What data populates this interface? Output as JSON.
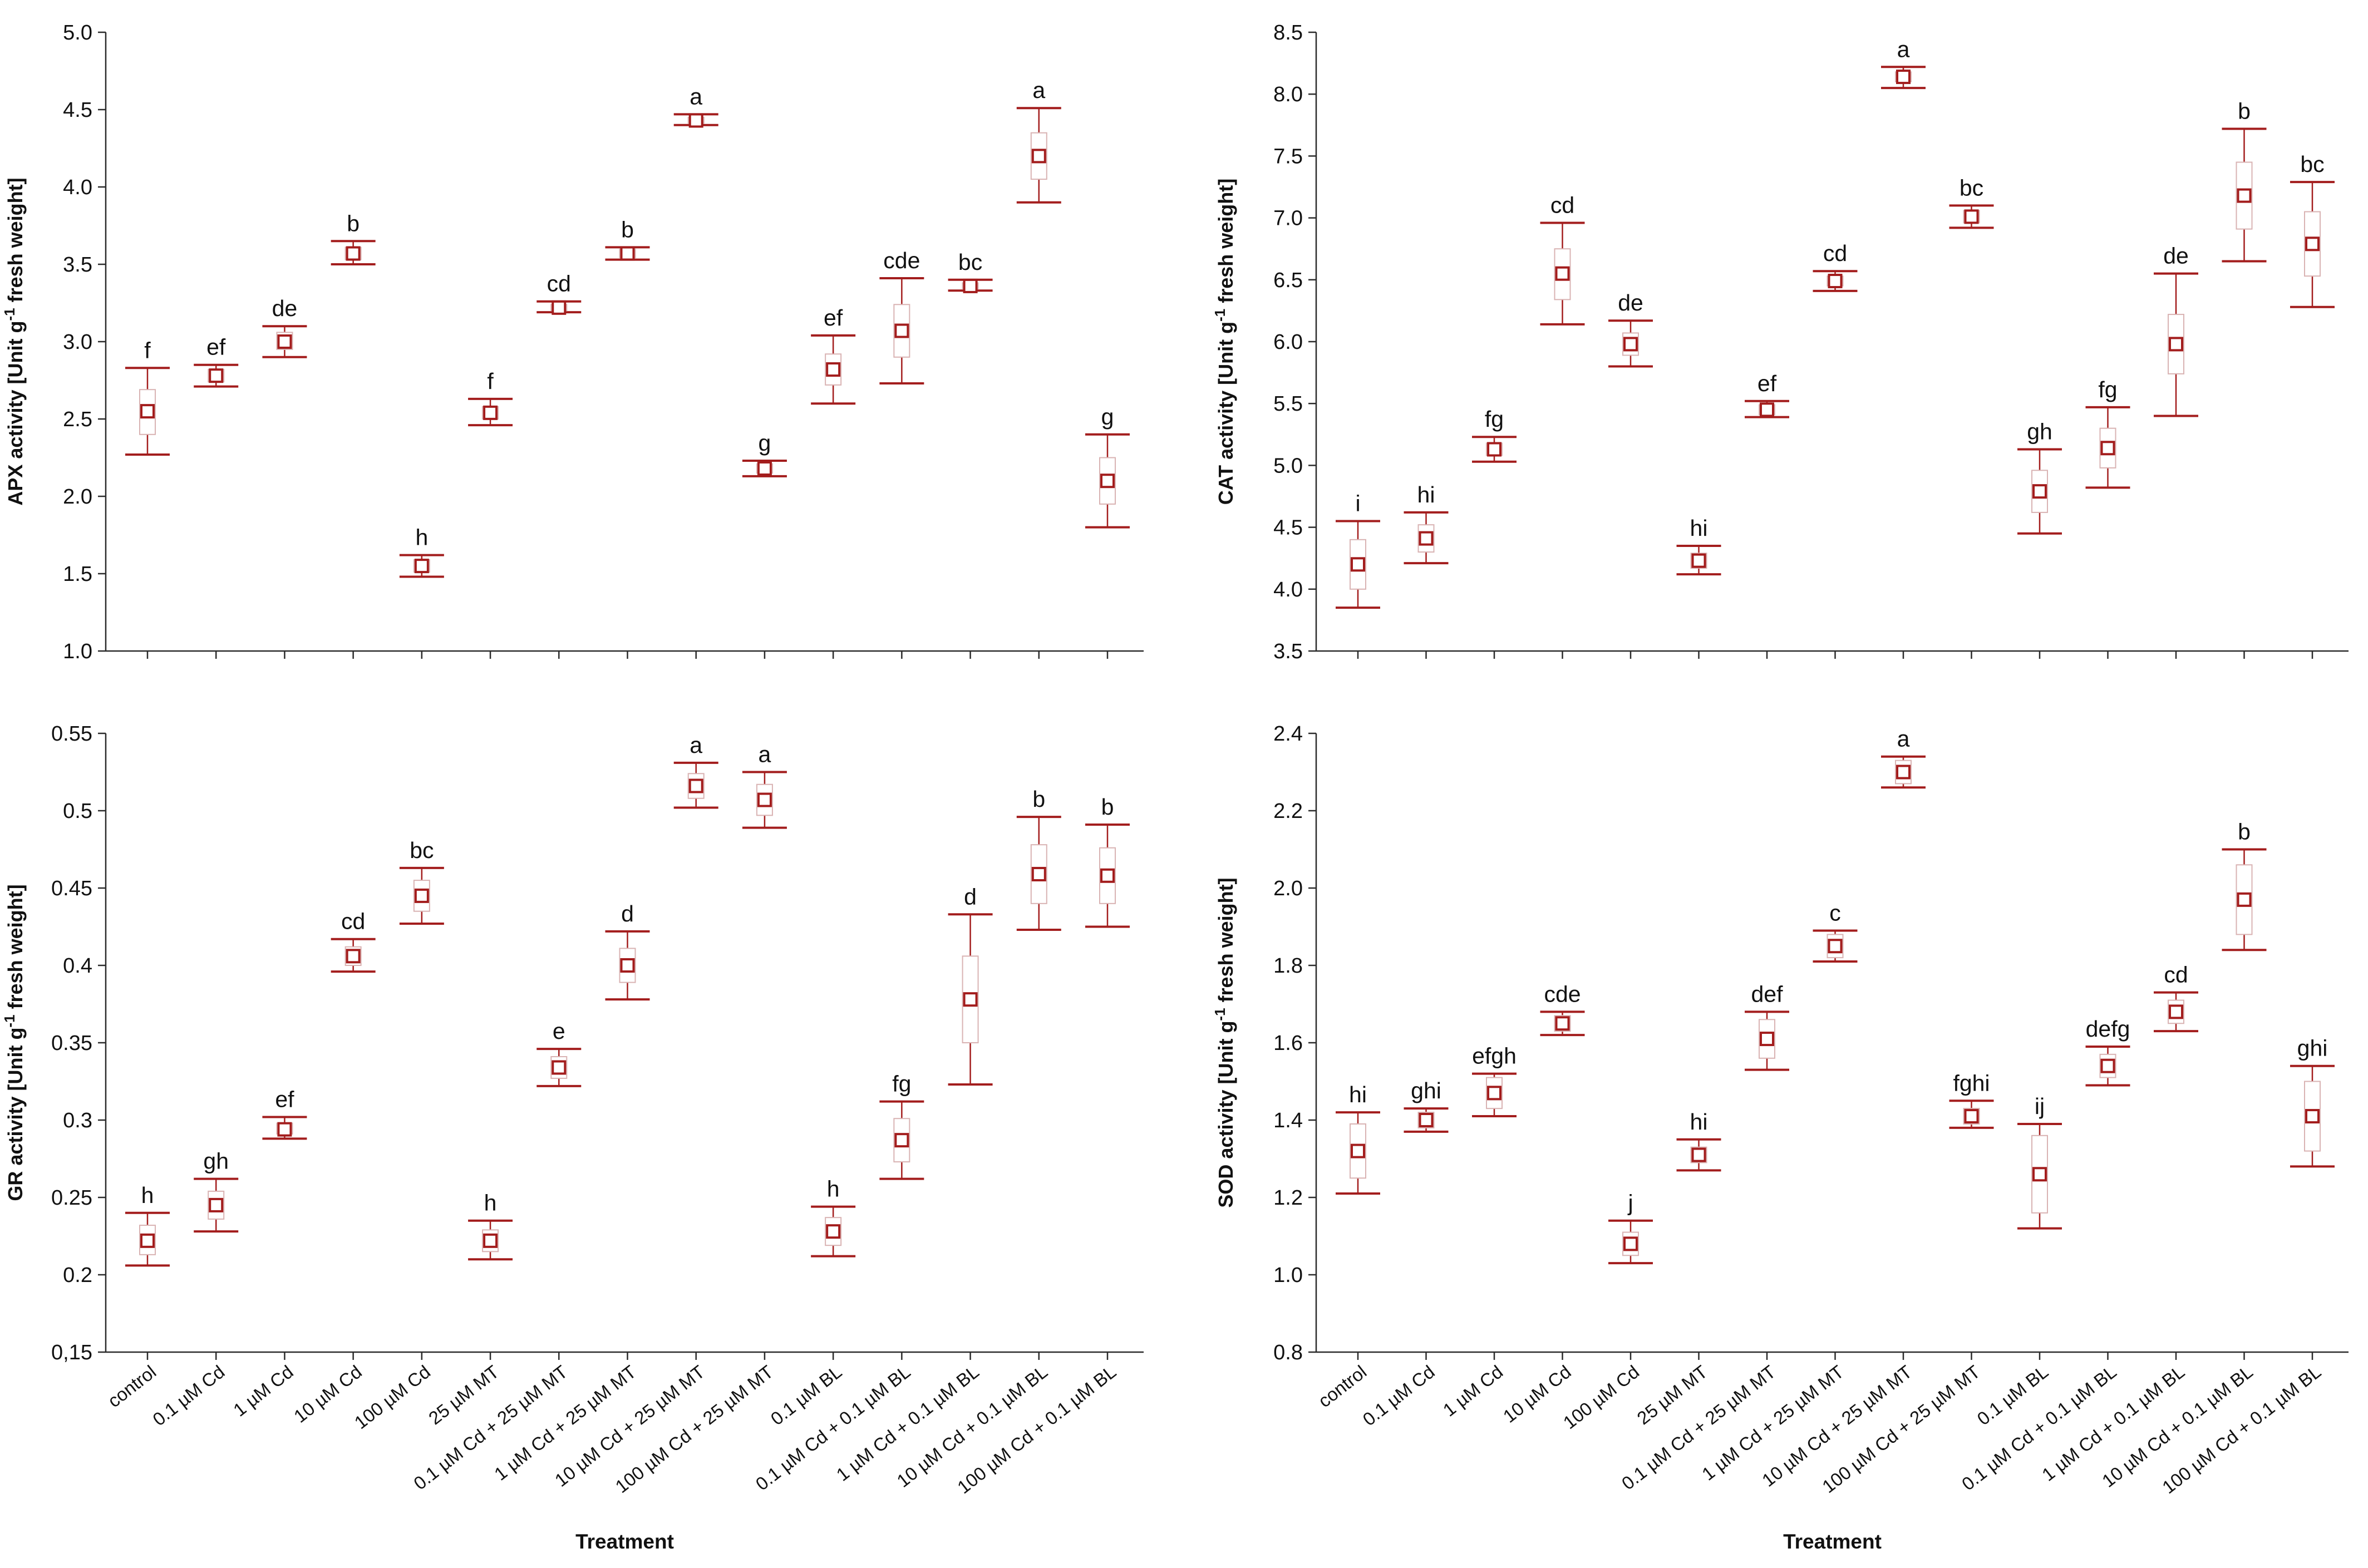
{
  "colors": {
    "mark": "#a31d1d",
    "box": "#d9b3b3",
    "axis": "#2b2b2b"
  },
  "xlabel": "Treatment",
  "categories": [
    "control",
    "0.1 µM Cd",
    "1 µM Cd",
    "10 µM Cd",
    "100 µM Cd",
    "25 µM MT",
    "0.1 µM Cd + 25 µM MT",
    "1 µM Cd + 25 µM MT",
    "10 µM Cd + 25 µM MT",
    "100 µM Cd + 25 µM MT",
    "0.1 µM BL",
    "0.1 µM Cd + 0.1 µM BL",
    "1 µM Cd + 0.1 µM BL",
    "10 µM Cd + 0.1 µM BL",
    "100 µM Cd + 0.1 µM BL"
  ],
  "chart_data": [
    {
      "type": "scatter",
      "panel": "top-left",
      "ylabel": "APX activity [Unit g-1 fresh weight]",
      "ylim": [
        1.0,
        5.0
      ],
      "yticks": [
        1.0,
        1.5,
        2.0,
        2.5,
        3.0,
        3.5,
        4.0,
        4.5,
        5.0
      ],
      "ytick_labels": [
        "1.0",
        "1.5",
        "2.0",
        "2.5",
        "3.0",
        "3.5",
        "4.0",
        "4.5",
        "5.0"
      ],
      "means": [
        2.55,
        2.78,
        3.0,
        3.57,
        1.55,
        2.54,
        3.22,
        3.57,
        4.43,
        2.18,
        2.82,
        3.07,
        3.36,
        4.2,
        2.1
      ],
      "box_low": [
        2.4,
        2.74,
        2.95,
        3.53,
        1.51,
        2.5,
        3.2,
        3.54,
        4.41,
        2.15,
        2.72,
        2.9,
        3.34,
        4.05,
        1.95
      ],
      "box_high": [
        2.69,
        2.82,
        3.06,
        3.61,
        1.59,
        2.58,
        3.24,
        3.6,
        4.45,
        2.21,
        2.92,
        3.24,
        3.38,
        4.35,
        2.25
      ],
      "err_low": [
        2.27,
        2.71,
        2.9,
        3.5,
        1.48,
        2.46,
        3.19,
        3.53,
        4.4,
        2.13,
        2.6,
        2.73,
        3.33,
        3.9,
        1.8
      ],
      "err_high": [
        2.83,
        2.85,
        3.1,
        3.65,
        1.62,
        2.63,
        3.26,
        3.61,
        4.47,
        2.23,
        3.04,
        3.41,
        3.4,
        4.51,
        2.4
      ],
      "letters": [
        "f",
        "ef",
        "de",
        "b",
        "h",
        "f",
        "cd",
        "b",
        "a",
        "g",
        "ef",
        "cde",
        "bc",
        "a",
        "g"
      ]
    },
    {
      "type": "scatter",
      "panel": "top-right",
      "ylabel": "CAT activity [Unit g-1 fresh weight]",
      "ylim": [
        3.5,
        8.5
      ],
      "yticks": [
        3.5,
        4.0,
        4.5,
        5.0,
        5.5,
        6.0,
        6.5,
        7.0,
        7.5,
        8.0,
        8.5
      ],
      "ytick_labels": [
        "3.5",
        "4.0",
        "4.5",
        "5.0",
        "5.5",
        "6.0",
        "6.5",
        "7.0",
        "7.5",
        "8.0",
        "8.5"
      ],
      "means": [
        4.2,
        4.41,
        5.13,
        6.55,
        5.98,
        4.23,
        5.45,
        6.49,
        8.14,
        7.01,
        4.79,
        5.14,
        5.98,
        7.18,
        6.79
      ],
      "box_low": [
        4.0,
        4.3,
        5.08,
        6.34,
        5.89,
        4.17,
        5.41,
        6.45,
        8.1,
        6.96,
        4.62,
        4.98,
        5.74,
        6.91,
        6.53
      ],
      "box_high": [
        4.4,
        4.52,
        5.18,
        6.75,
        6.07,
        4.29,
        5.49,
        6.53,
        8.18,
        7.06,
        4.96,
        5.3,
        6.22,
        7.45,
        7.05
      ],
      "err_low": [
        3.85,
        4.21,
        5.03,
        6.14,
        5.8,
        4.12,
        5.39,
        6.41,
        8.05,
        6.92,
        4.45,
        4.82,
        5.4,
        6.65,
        6.28
      ],
      "err_high": [
        4.55,
        4.62,
        5.23,
        6.96,
        6.17,
        4.35,
        5.52,
        6.57,
        8.22,
        7.1,
        5.13,
        5.47,
        6.55,
        7.72,
        7.29
      ],
      "letters": [
        "i",
        "hi",
        "fg",
        "cd",
        "de",
        "hi",
        "ef",
        "cd",
        "a",
        "bc",
        "gh",
        "fg",
        "de",
        "b",
        "bc"
      ]
    },
    {
      "type": "scatter",
      "panel": "bottom-left",
      "ylabel": "GR activity [Unit g-1 fresh weight]",
      "ylim": [
        0.15,
        0.55
      ],
      "yticks": [
        0.15,
        0.2,
        0.25,
        0.3,
        0.35,
        0.4,
        0.45,
        0.5,
        0.55
      ],
      "ytick_labels": [
        "0,15",
        "0.2",
        "0.25",
        "0.3",
        "0.35",
        "0.4",
        "0.45",
        "0.5",
        "0.55"
      ],
      "means": [
        0.222,
        0.245,
        0.294,
        0.406,
        0.445,
        0.222,
        0.334,
        0.4,
        0.516,
        0.507,
        0.228,
        0.287,
        0.378,
        0.459,
        0.458
      ],
      "box_low": [
        0.213,
        0.236,
        0.291,
        0.4,
        0.435,
        0.215,
        0.327,
        0.389,
        0.508,
        0.497,
        0.219,
        0.273,
        0.35,
        0.44,
        0.44
      ],
      "box_high": [
        0.232,
        0.254,
        0.298,
        0.412,
        0.455,
        0.229,
        0.341,
        0.411,
        0.524,
        0.517,
        0.237,
        0.301,
        0.406,
        0.478,
        0.476
      ],
      "err_low": [
        0.206,
        0.228,
        0.288,
        0.396,
        0.427,
        0.21,
        0.322,
        0.378,
        0.502,
        0.489,
        0.212,
        0.262,
        0.323,
        0.423,
        0.425
      ],
      "err_high": [
        0.24,
        0.262,
        0.302,
        0.417,
        0.463,
        0.235,
        0.346,
        0.422,
        0.531,
        0.525,
        0.244,
        0.312,
        0.433,
        0.496,
        0.491
      ],
      "letters": [
        "h",
        "gh",
        "ef",
        "cd",
        "bc",
        "h",
        "e",
        "d",
        "a",
        "a",
        "h",
        "fg",
        "d",
        "b",
        "b"
      ]
    },
    {
      "type": "scatter",
      "panel": "bottom-right",
      "ylabel": "SOD activity [Unit g-1 fresh weight]",
      "ylim": [
        0.8,
        2.4
      ],
      "yticks": [
        0.8,
        1.0,
        1.2,
        1.4,
        1.6,
        1.8,
        2.0,
        2.2,
        2.4
      ],
      "ytick_labels": [
        "0.8",
        "1.0",
        "1.2",
        "1.4",
        "1.6",
        "1.8",
        "2.0",
        "2.2",
        "2.4"
      ],
      "means": [
        1.32,
        1.4,
        1.47,
        1.65,
        1.08,
        1.31,
        1.61,
        1.85,
        2.3,
        1.41,
        1.26,
        1.54,
        1.68,
        1.97,
        1.41
      ],
      "box_low": [
        1.25,
        1.38,
        1.43,
        1.63,
        1.05,
        1.29,
        1.56,
        1.82,
        2.27,
        1.39,
        1.16,
        1.51,
        1.65,
        1.88,
        1.32
      ],
      "box_high": [
        1.39,
        1.42,
        1.51,
        1.67,
        1.11,
        1.33,
        1.66,
        1.88,
        2.33,
        1.43,
        1.36,
        1.57,
        1.71,
        2.06,
        1.5
      ],
      "err_low": [
        1.21,
        1.37,
        1.41,
        1.62,
        1.03,
        1.27,
        1.53,
        1.81,
        2.26,
        1.38,
        1.12,
        1.49,
        1.63,
        1.84,
        1.28
      ],
      "err_high": [
        1.42,
        1.43,
        1.52,
        1.68,
        1.14,
        1.35,
        1.68,
        1.89,
        2.34,
        1.45,
        1.39,
        1.59,
        1.73,
        2.1,
        1.54
      ],
      "letters": [
        "hi",
        "ghi",
        "efgh",
        "cde",
        "j",
        "hi",
        "def",
        "c",
        "a",
        "fghi",
        "ij",
        "defg",
        "cd",
        "b",
        "ghi"
      ]
    }
  ]
}
